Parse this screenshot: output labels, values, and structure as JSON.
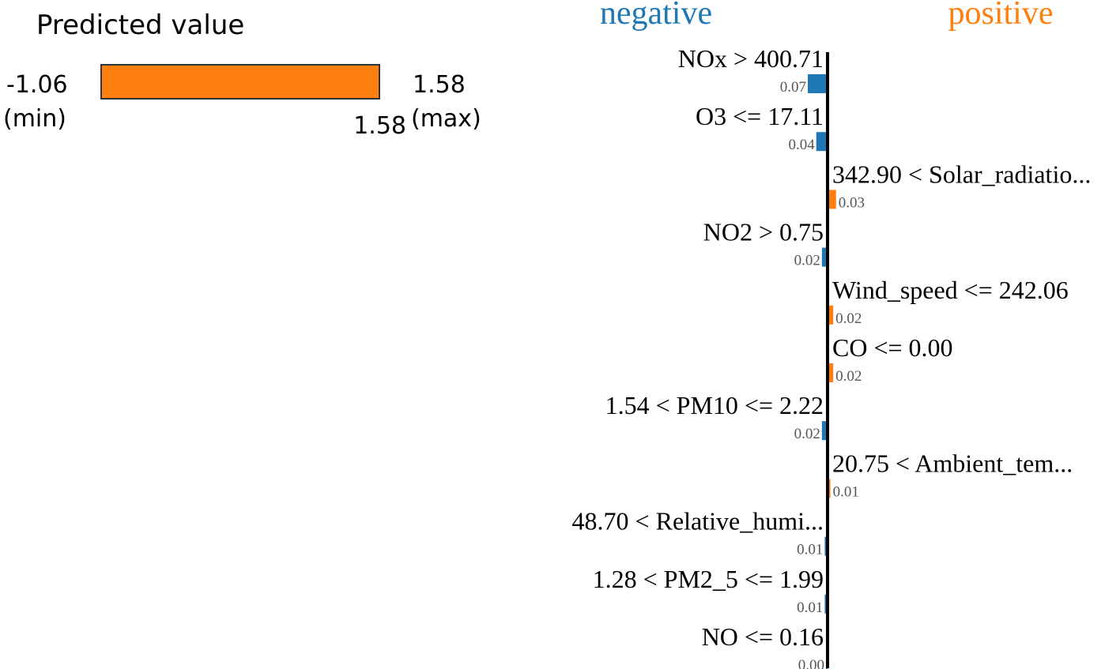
{
  "predicted_panel": {
    "title": "Predicted value",
    "min_value": "-1.06",
    "min_label": "(min)",
    "max_value": "1.58",
    "max_label": "(max)",
    "predicted": "1.58",
    "fill_fraction": 1.0,
    "bar_color": "#ff7f0e"
  },
  "chart_data": {
    "type": "bar",
    "orientation": "horizontal",
    "legend": {
      "negative": "negative",
      "positive": "positive"
    },
    "colors": {
      "negative": "#1f77b4",
      "positive": "#ff7f0e"
    },
    "features": [
      {
        "label": "NOx > 400.71",
        "value": "0.07",
        "weight": -0.07
      },
      {
        "label": "O3 <= 17.11",
        "value": "0.04",
        "weight": -0.04
      },
      {
        "label": "342.90 < Solar_radiatio...",
        "value": "0.03",
        "weight": 0.03
      },
      {
        "label": "NO2 > 0.75",
        "value": "0.02",
        "weight": -0.02
      },
      {
        "label": "Wind_speed <= 242.06",
        "value": "0.02",
        "weight": 0.02
      },
      {
        "label": "CO <= 0.00",
        "value": "0.02",
        "weight": 0.02
      },
      {
        "label": "1.54 < PM10 <= 2.22",
        "value": "0.02",
        "weight": -0.02
      },
      {
        "label": "20.75 < Ambient_tem...",
        "value": "0.01",
        "weight": 0.01
      },
      {
        "label": "48.70 < Relative_humi...",
        "value": "0.01",
        "weight": -0.01
      },
      {
        "label": "1.28 < PM2_5 <= 1.99",
        "value": "0.01",
        "weight": -0.01
      },
      {
        "label": "NO <= 0.16",
        "value": "0.00",
        "weight": -0.001
      }
    ]
  }
}
